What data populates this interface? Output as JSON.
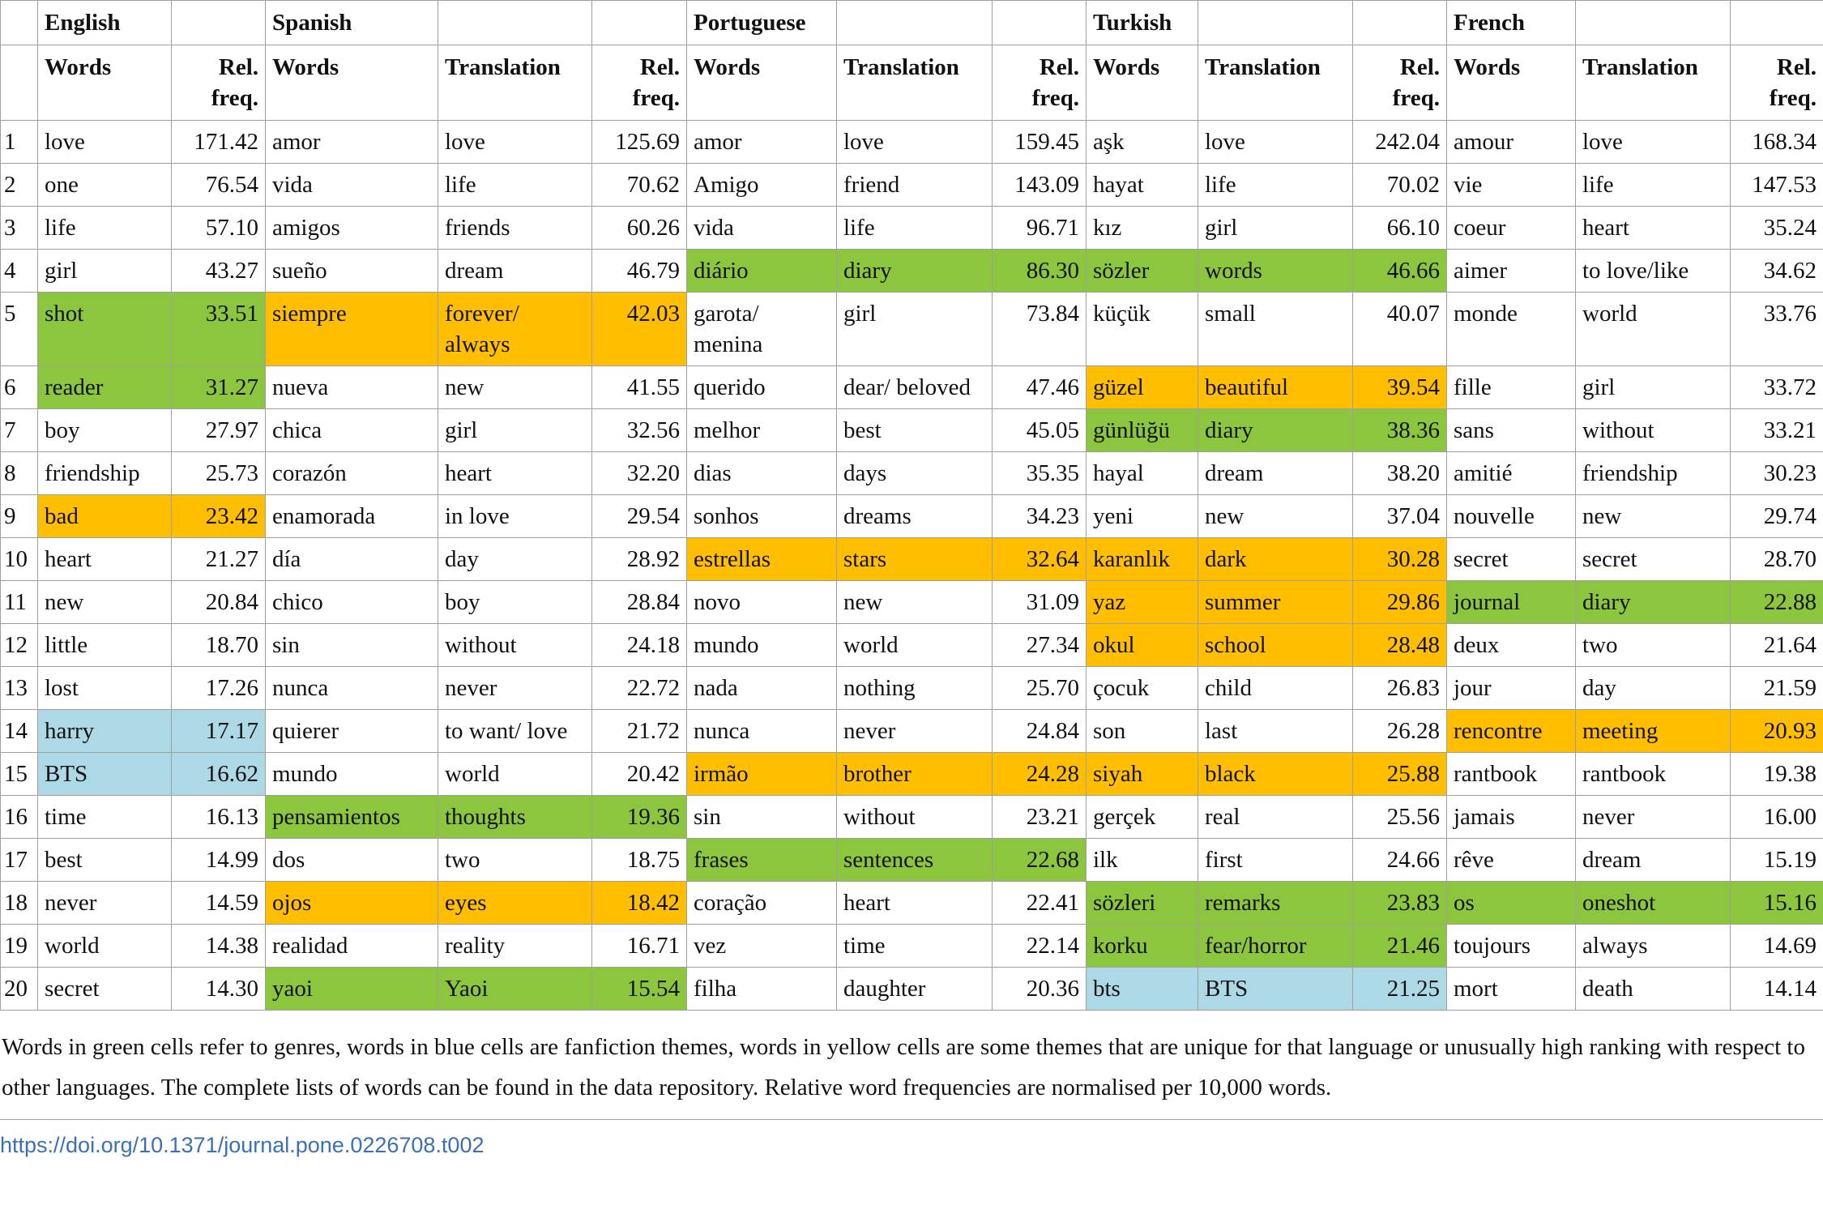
{
  "table": {
    "languages": [
      "English",
      "Spanish",
      "Portuguese",
      "Turkish",
      "French"
    ],
    "column_headers": [
      "Words",
      "Rel. freq.",
      "Words",
      "Translation",
      "Rel. freq.",
      "Words",
      "Translation",
      "Rel. freq.",
      "Words",
      "Translation",
      "Rel. freq.",
      "Words",
      "Translation",
      "Rel. freq."
    ],
    "rows": [
      [
        "1",
        "love",
        "171.42",
        "amor",
        "love",
        "125.69",
        "amor",
        "love",
        "159.45",
        "aşk",
        "love",
        "242.04",
        "amour",
        "love",
        "168.34"
      ],
      [
        "2",
        "one",
        "76.54",
        "vida",
        "life",
        "70.62",
        "Amigo",
        "friend",
        "143.09",
        "hayat",
        "life",
        "70.02",
        "vie",
        "life",
        "147.53"
      ],
      [
        "3",
        "life",
        "57.10",
        "amigos",
        "friends",
        "60.26",
        "vida",
        "life",
        "96.71",
        "kız",
        "girl",
        "66.10",
        "coeur",
        "heart",
        "35.24"
      ],
      [
        "4",
        "girl",
        "43.27",
        "sueño",
        "dream",
        "46.79",
        "diário",
        "diary",
        "86.30",
        "sözler",
        "words",
        "46.66",
        "aimer",
        "to love/like",
        "34.62"
      ],
      [
        "5",
        "shot",
        "33.51",
        "siempre",
        "forever/ always",
        "42.03",
        "garota/ menina",
        "girl",
        "73.84",
        "küçük",
        "small",
        "40.07",
        "monde",
        "world",
        "33.76"
      ],
      [
        "6",
        "reader",
        "31.27",
        "nueva",
        "new",
        "41.55",
        "querido",
        "dear/ beloved",
        "47.46",
        "güzel",
        "beautiful",
        "39.54",
        "fille",
        "girl",
        "33.72"
      ],
      [
        "7",
        "boy",
        "27.97",
        "chica",
        "girl",
        "32.56",
        "melhor",
        "best",
        "45.05",
        "günlüğü",
        "diary",
        "38.36",
        "sans",
        "without",
        "33.21"
      ],
      [
        "8",
        "friendship",
        "25.73",
        "corazón",
        "heart",
        "32.20",
        "dias",
        "days",
        "35.35",
        "hayal",
        "dream",
        "38.20",
        "amitié",
        "friendship",
        "30.23"
      ],
      [
        "9",
        "bad",
        "23.42",
        "enamorada",
        "in love",
        "29.54",
        "sonhos",
        "dreams",
        "34.23",
        "yeni",
        "new",
        "37.04",
        "nouvelle",
        "new",
        "29.74"
      ],
      [
        "10",
        "heart",
        "21.27",
        "día",
        "day",
        "28.92",
        "estrellas",
        "stars",
        "32.64",
        "karanlık",
        "dark",
        "30.28",
        "secret",
        "secret",
        "28.70"
      ],
      [
        "11",
        "new",
        "20.84",
        "chico",
        "boy",
        "28.84",
        "novo",
        "new",
        "31.09",
        "yaz",
        "summer",
        "29.86",
        "journal",
        "diary",
        "22.88"
      ],
      [
        "12",
        "little",
        "18.70",
        "sin",
        "without",
        "24.18",
        "mundo",
        "world",
        "27.34",
        "okul",
        "school",
        "28.48",
        "deux",
        "two",
        "21.64"
      ],
      [
        "13",
        "lost",
        "17.26",
        "nunca",
        "never",
        "22.72",
        "nada",
        "nothing",
        "25.70",
        "çocuk",
        "child",
        "26.83",
        "jour",
        "day",
        "21.59"
      ],
      [
        "14",
        "harry",
        "17.17",
        "quierer",
        "to want/ love",
        "21.72",
        "nunca",
        "never",
        "24.84",
        "son",
        "last",
        "26.28",
        "rencontre",
        "meeting",
        "20.93"
      ],
      [
        "15",
        "BTS",
        "16.62",
        "mundo",
        "world",
        "20.42",
        "irmão",
        "brother",
        "24.28",
        "siyah",
        "black",
        "25.88",
        "rantbook",
        "rantbook",
        "19.38"
      ],
      [
        "16",
        "time",
        "16.13",
        "pensamientos",
        "thoughts",
        "19.36",
        "sin",
        "without",
        "23.21",
        "gerçek",
        "real",
        "25.56",
        "jamais",
        "never",
        "16.00"
      ],
      [
        "17",
        "best",
        "14.99",
        "dos",
        "two",
        "18.75",
        "frases",
        "sentences",
        "22.68",
        "ilk",
        "first",
        "24.66",
        "rêve",
        "dream",
        "15.19"
      ],
      [
        "18",
        "never",
        "14.59",
        "ojos",
        "eyes",
        "18.42",
        "coração",
        "heart",
        "22.41",
        "sözleri",
        "remarks",
        "23.83",
        "os",
        "oneshot",
        "15.16"
      ],
      [
        "19",
        "world",
        "14.38",
        "realidad",
        "reality",
        "16.71",
        "vez",
        "time",
        "22.14",
        "korku",
        "fear/horror",
        "21.46",
        "toujours",
        "always",
        "14.69"
      ],
      [
        "20",
        "secret",
        "14.30",
        "yaoi",
        "Yaoi",
        "15.54",
        "filha",
        "daughter",
        "20.36",
        "bts",
        "BTS",
        "21.25",
        "mort",
        "death",
        "14.14"
      ]
    ],
    "highlights": [
      [
        null,
        null,
        null,
        null,
        null
      ],
      [
        null,
        null,
        null,
        null,
        null
      ],
      [
        null,
        null,
        null,
        null,
        null
      ],
      [
        null,
        null,
        "#8cc63f",
        "#8cc63f",
        null
      ],
      [
        "#8cc63f",
        "#ffbf00",
        null,
        null,
        null
      ],
      [
        "#8cc63f",
        null,
        null,
        "#ffbf00",
        null
      ],
      [
        null,
        null,
        null,
        "#8cc63f",
        null
      ],
      [
        null,
        null,
        null,
        null,
        null
      ],
      [
        "#ffbf00",
        null,
        null,
        null,
        null
      ],
      [
        null,
        null,
        "#ffbf00",
        "#ffbf00",
        null
      ],
      [
        null,
        null,
        null,
        "#ffbf00",
        "#8cc63f"
      ],
      [
        null,
        null,
        null,
        "#ffbf00",
        null
      ],
      [
        null,
        null,
        null,
        null,
        null
      ],
      [
        "#add8e6",
        null,
        null,
        null,
        "#ffbf00"
      ],
      [
        "#add8e6",
        null,
        "#ffbf00",
        "#ffbf00",
        null
      ],
      [
        null,
        "#8cc63f",
        null,
        null,
        null
      ],
      [
        null,
        null,
        "#8cc63f",
        null,
        null
      ],
      [
        null,
        "#ffbf00",
        null,
        "#8cc63f",
        "#8cc63f"
      ],
      [
        null,
        null,
        null,
        "#8cc63f",
        null
      ],
      [
        null,
        "#8cc63f",
        null,
        "#add8e6",
        null
      ]
    ]
  },
  "caption": "Words in green cells refer to genres, words in blue cells are fanfiction themes, words in yellow cells are some themes that are unique for that language or unusually high ranking with respect to other languages. The complete lists of words can be found in the data repository. Relative word frequencies are normalised per 10,000 words.",
  "doi": "https://doi.org/10.1371/journal.pone.0226708.t002"
}
